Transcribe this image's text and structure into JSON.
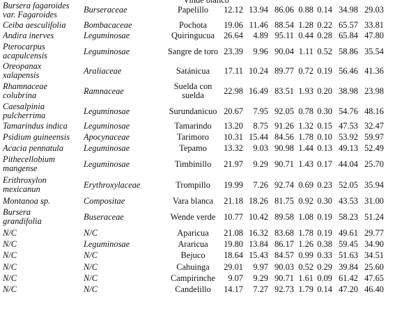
{
  "header_fragment": "Vinde blanco",
  "rows": [
    {
      "species": "Bursera fagaroides var. Fagaroides",
      "family": "Burseraceae",
      "common": "Papelillo",
      "values": [
        "12.12",
        "13.94",
        "86.06",
        "0.88",
        "0.14",
        "34.98",
        "29.03"
      ]
    },
    {
      "species": "Ceiba aesculifolia",
      "family": "Bombacaceae",
      "common": "Pochota",
      "values": [
        "19.06",
        "11.46",
        "88.54",
        "1.28",
        "0.22",
        "65.57",
        "33.81"
      ]
    },
    {
      "species": "Andira inerves",
      "family": "Leguminosae",
      "common": "Quiringucua",
      "values": [
        "26.64",
        "4.89",
        "95.11",
        "0.44",
        "0.28",
        "65.84",
        "47.80"
      ]
    },
    {
      "species": "Pterocarpus acapulcensis",
      "family": "Leguminosae",
      "common": "Sangre de toro",
      "values": [
        "23.39",
        "9.96",
        "90.04",
        "1.11",
        "0.52",
        "58.86",
        "35.54"
      ]
    },
    {
      "species": "Oreopanax xalapensis",
      "family": "Araliaceae",
      "common": "Satánicua",
      "values": [
        "17.11",
        "10.24",
        "89.77",
        "0.72",
        "0.19",
        "56.46",
        "41.36"
      ]
    },
    {
      "species": "Rhamnaceae colubrina",
      "family": "Ramnaceae",
      "common": "Suelda con suelda",
      "values": [
        "22.98",
        "16.49",
        "83.51",
        "1.93",
        "0.20",
        "38.98",
        "23.98"
      ]
    },
    {
      "species": "Caesalpinia pulcherrima",
      "family": "Leguminosae",
      "common": "Surundanicuo",
      "values": [
        "20.67",
        "7.95",
        "92.05",
        "0.78",
        "0.30",
        "54.76",
        "48.16"
      ]
    },
    {
      "species": "Tamarindus indica",
      "family": "Leguminosae",
      "common": "Tamarindo",
      "values": [
        "13.20",
        "8.75",
        "91.26",
        "1.32",
        "0.15",
        "47.53",
        "32.47"
      ]
    },
    {
      "species": "Psidium guineensis",
      "family": "Apocynaceae",
      "common": "Tarimoro",
      "values": [
        "10.31",
        "15.44",
        "84.56",
        "1.78",
        "0.10",
        "53.92",
        "59.97"
      ]
    },
    {
      "species": "Acacia pennatula",
      "family": "Leguminosae",
      "common": "Tepamo",
      "values": [
        "13.32",
        "9.03",
        "90.98",
        "1.44",
        "0.13",
        "49.13",
        "52.49"
      ]
    },
    {
      "species": "Pithecellobium mangense",
      "family": "Leguminosae",
      "common": "Timbinillo",
      "values": [
        "21.97",
        "9.29",
        "90.71",
        "1.43",
        "0.17",
        "44.04",
        "25.70"
      ]
    },
    {
      "species": "Erithroxylon mexicanun",
      "family": "Erythroxylaceae",
      "common": "Trompillo",
      "values": [
        "19.99",
        "7.26",
        "92.74",
        "0.69",
        "0.23",
        "52.05",
        "35.94"
      ]
    },
    {
      "species": "Montanoa sp.",
      "family": "Compositae",
      "common": "Vara blanca",
      "values": [
        "21.18",
        "18.26",
        "81.75",
        "0.92",
        "0.30",
        "43.53",
        "31.00"
      ]
    },
    {
      "species": "Bursera grandifolia",
      "family": "Buseraceae",
      "common": "Wende verde",
      "values": [
        "10.77",
        "10.42",
        "89.58",
        "1.08",
        "0.19",
        "58.23",
        "51.24"
      ]
    },
    {
      "species": "N/C",
      "family": "N/C",
      "common": "Aparicua",
      "values": [
        "21.08",
        "16.32",
        "83.68",
        "1.78",
        "0.19",
        "49.61",
        "29.77"
      ]
    },
    {
      "species": "N/C",
      "family": "Leguminosae",
      "common": "Araricua",
      "values": [
        "19.80",
        "13.84",
        "86.17",
        "1.26",
        "0.38",
        "59.45",
        "34.90"
      ]
    },
    {
      "species": "N/C",
      "family": "N/C",
      "common": "Bejuco",
      "values": [
        "18.64",
        "15.43",
        "84.57",
        "0.99",
        "0.33",
        "51.63",
        "34.51"
      ]
    },
    {
      "species": "N/C",
      "family": "N/C",
      "common": "Cahuinga",
      "values": [
        "29.01",
        "9.97",
        "90.03",
        "0.52",
        "0.29",
        "39.84",
        "25.60"
      ]
    },
    {
      "species": "N/C",
      "family": "N/C",
      "common": "Campirinche",
      "values": [
        "9.07",
        "9.29",
        "90.71",
        "1.61",
        "0.09",
        "61.42",
        "47.65"
      ]
    },
    {
      "species": "N/C",
      "family": "N/C",
      "common": "Candelillo",
      "values": [
        "14.17",
        "7.27",
        "92.73",
        "1.79",
        "0.14",
        "47.20",
        "46.40"
      ]
    }
  ]
}
